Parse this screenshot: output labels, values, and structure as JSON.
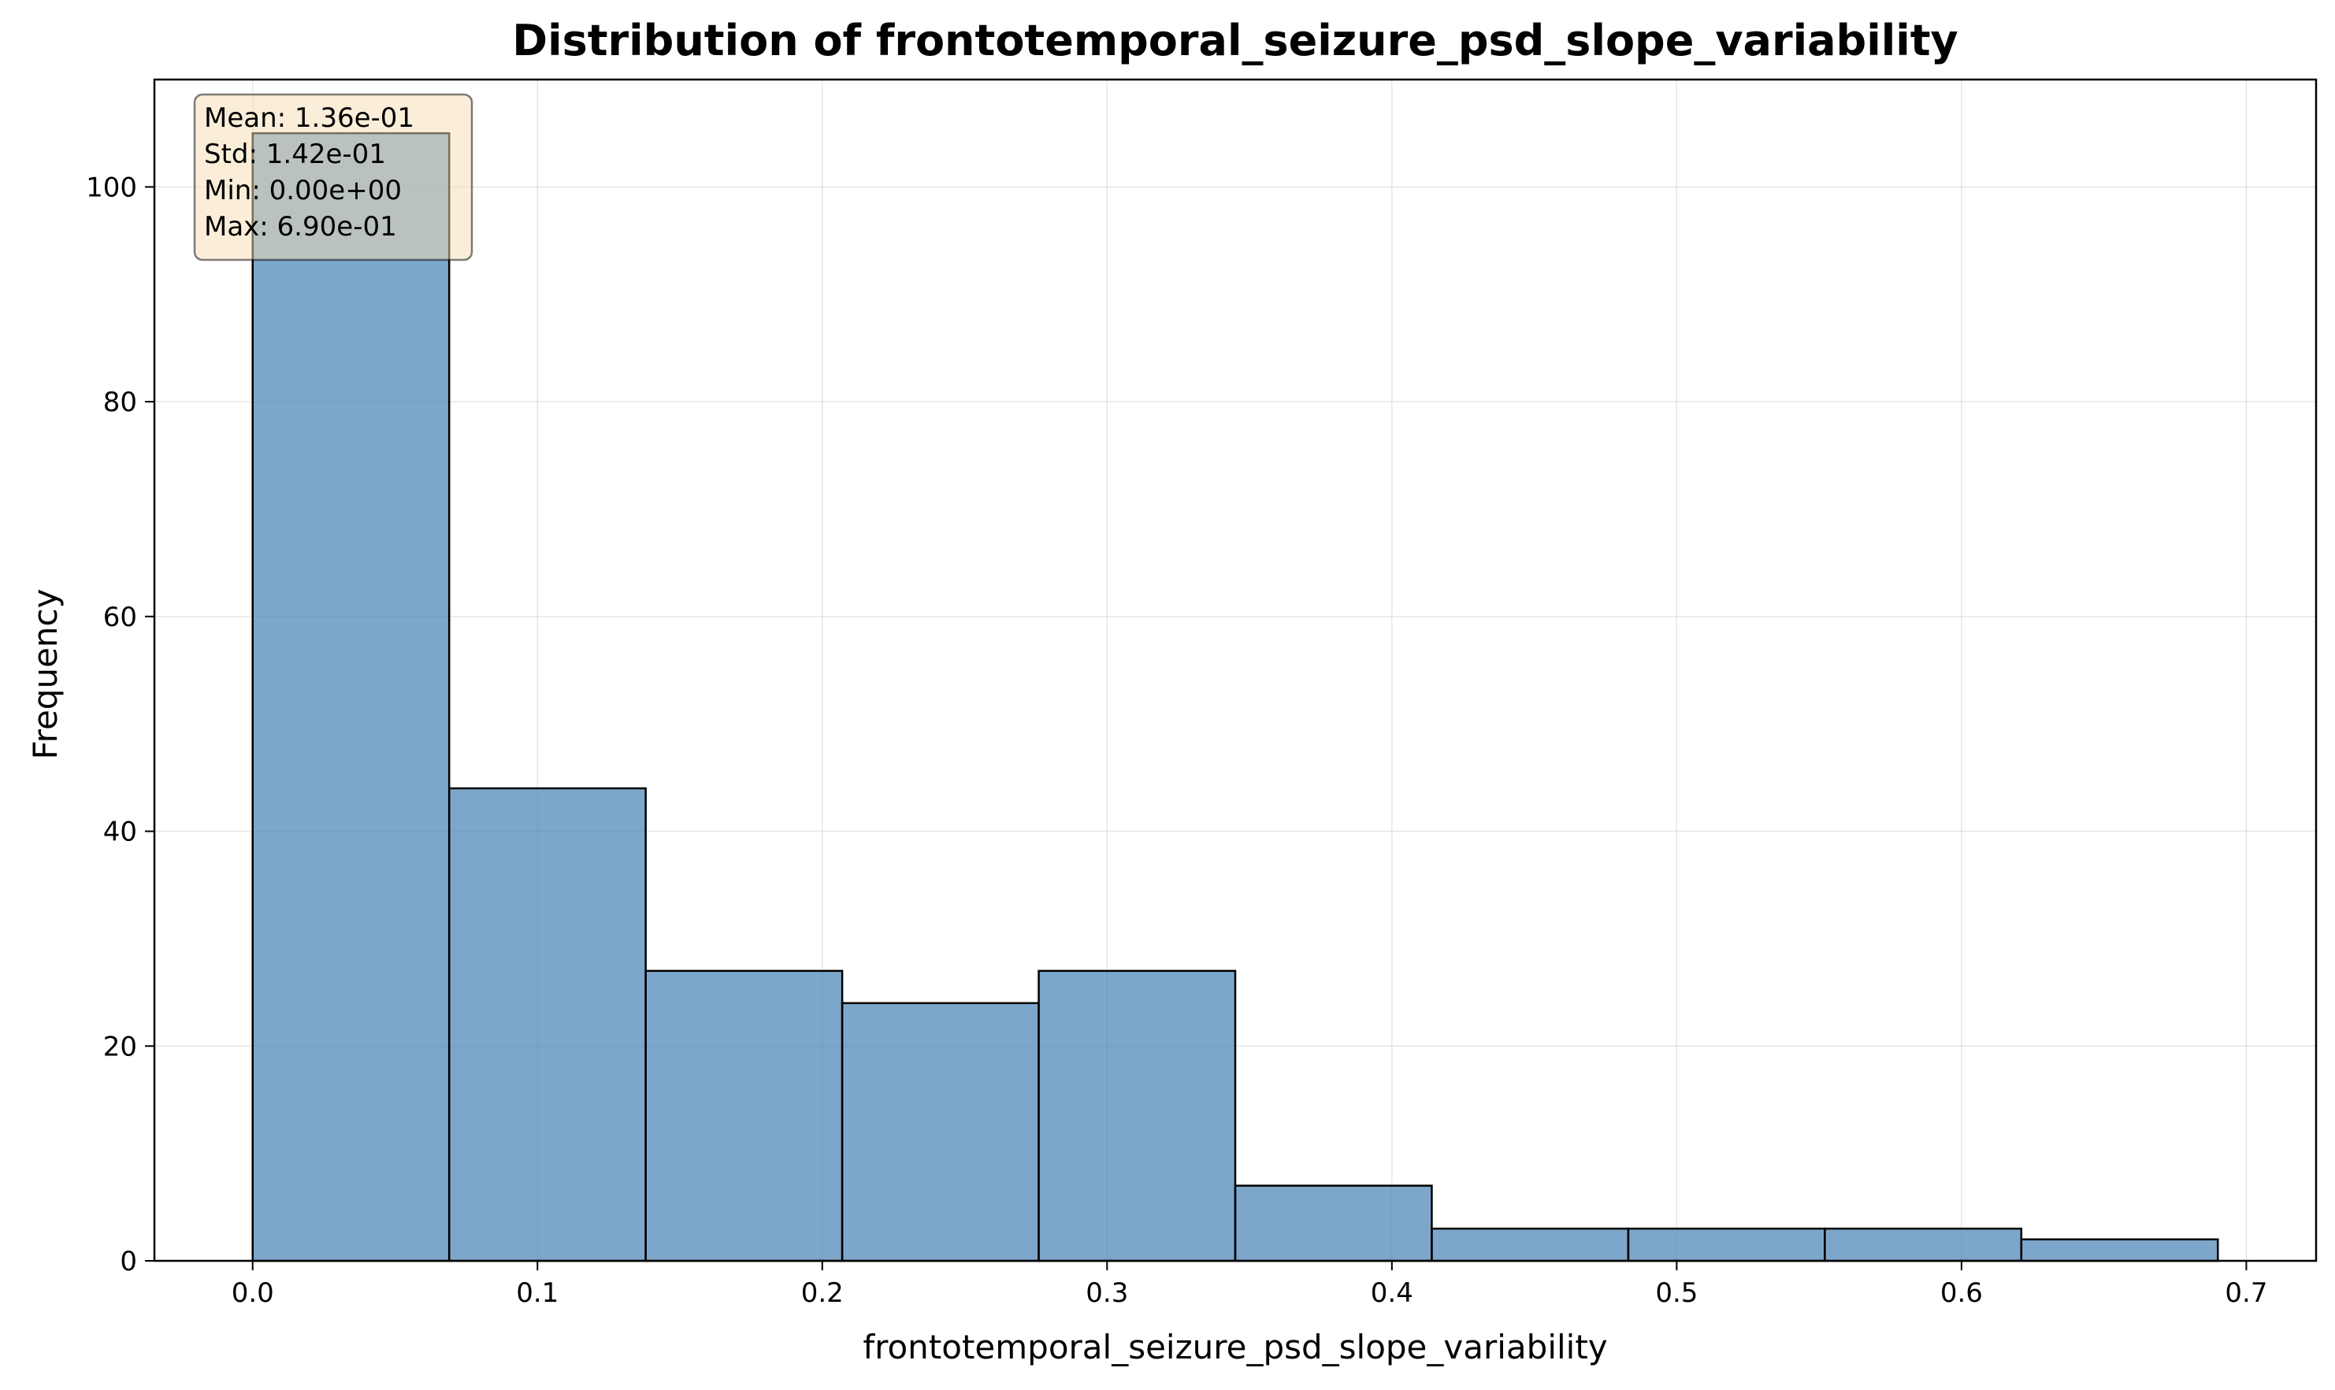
{
  "chart_data": {
    "type": "bar",
    "title": "Distribution of frontotemporal_seizure_psd_slope_variability",
    "xlabel": "frontotemporal_seizure_psd_slope_variability",
    "ylabel": "Frequency",
    "xlim": [
      -0.0345,
      0.7245
    ],
    "ylim": [
      0,
      110
    ],
    "xticks": [
      0.0,
      0.1,
      0.2,
      0.3,
      0.4,
      0.5,
      0.6,
      0.7
    ],
    "xtick_labels": [
      "0.0",
      "0.1",
      "0.2",
      "0.3",
      "0.4",
      "0.5",
      "0.6",
      "0.7"
    ],
    "yticks": [
      0,
      20,
      40,
      60,
      80,
      100
    ],
    "ytick_labels": [
      "0",
      "20",
      "40",
      "60",
      "80",
      "100"
    ],
    "bin_edges": [
      0.0,
      0.069,
      0.138,
      0.207,
      0.276,
      0.345,
      0.414,
      0.483,
      0.552,
      0.621,
      0.69
    ],
    "values": [
      105,
      44,
      27,
      24,
      27,
      7,
      3,
      3,
      3,
      2
    ],
    "grid": true,
    "bar_color": "#4682b4",
    "bar_edge_color": "#000000",
    "stats_box": {
      "lines": [
        "Mean: 1.36e-01",
        "Std: 1.42e-01",
        "Min: 0.00e+00",
        "Max: 6.90e-01"
      ],
      "placement": "top-left",
      "background": "#f5deb3"
    }
  }
}
